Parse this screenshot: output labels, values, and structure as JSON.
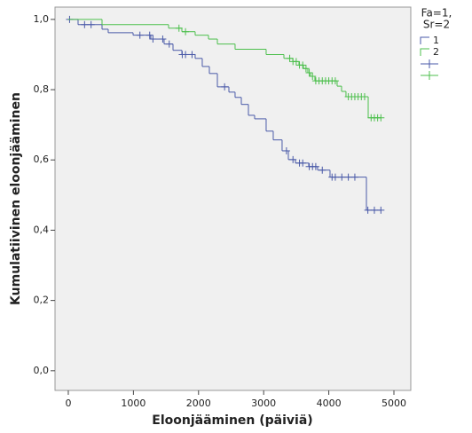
{
  "chart_data": {
    "type": "kaplan-meier",
    "xlabel": "Eloonjääminen (päiviä)",
    "ylabel": "Kumulatiivinen eloonjääminen",
    "legend_title": [
      "Fa=1,",
      "Sr=2"
    ],
    "legend_position": "right",
    "xlim": [
      -204,
      5259
    ],
    "ylim": [
      -0.056,
      1.035
    ],
    "xticks": [
      0,
      1000,
      2000,
      3000,
      4000,
      5000
    ],
    "yticks": [
      {
        "value": 0,
        "label": "0,0"
      },
      {
        "value": 0.2,
        "label": "0,2"
      },
      {
        "value": 0.4,
        "label": "0,4"
      },
      {
        "value": 0.6,
        "label": "0,6"
      },
      {
        "value": 0.8,
        "label": "0,8"
      },
      {
        "value": 1.0,
        "label": "1,0"
      }
    ],
    "series": [
      {
        "name": "1",
        "color": "#4a5aa8",
        "time": [
          0,
          150,
          518,
          613,
          995,
          1267,
          1471,
          1608,
          1744,
          1948,
          2057,
          2166,
          2289,
          2466,
          2561,
          2657,
          2766,
          2861,
          3038,
          3147,
          3283,
          3379,
          3488,
          3692,
          3828,
          4019,
          4578
        ],
        "survival": [
          1.0,
          0.985,
          0.972,
          0.962,
          0.955,
          0.944,
          0.93,
          0.912,
          0.9,
          0.889,
          0.866,
          0.846,
          0.808,
          0.793,
          0.778,
          0.758,
          0.727,
          0.717,
          0.682,
          0.657,
          0.626,
          0.601,
          0.591,
          0.581,
          0.571,
          0.551,
          0.457
        ],
        "censored_time": [
          20,
          250,
          350,
          1100,
          1250,
          1300,
          1450,
          1550,
          1750,
          1800,
          1900,
          2400,
          3350,
          3450,
          3550,
          3600,
          3700,
          3750,
          3800,
          3900,
          4050,
          4100,
          4200,
          4300,
          4400,
          4600,
          4700,
          4800
        ],
        "censored_survival": [
          1.0,
          0.985,
          0.985,
          0.955,
          0.955,
          0.944,
          0.944,
          0.93,
          0.9,
          0.9,
          0.9,
          0.808,
          0.626,
          0.601,
          0.591,
          0.591,
          0.581,
          0.581,
          0.581,
          0.571,
          0.551,
          0.551,
          0.551,
          0.551,
          0.551,
          0.457,
          0.457,
          0.457
        ]
      },
      {
        "name": "2",
        "color": "#4cbf4c",
        "time": [
          0,
          518,
          1540,
          1744,
          1948,
          2153,
          2289,
          2561,
          3038,
          3311,
          3447,
          3542,
          3610,
          3678,
          3719,
          3787,
          4128,
          4196,
          4264,
          4605
        ],
        "survival": [
          1.0,
          0.985,
          0.975,
          0.965,
          0.955,
          0.944,
          0.93,
          0.915,
          0.9,
          0.889,
          0.88,
          0.87,
          0.86,
          0.848,
          0.838,
          0.825,
          0.81,
          0.795,
          0.78,
          0.72
        ],
        "censored_time": [
          1700,
          1800,
          3400,
          3450,
          3500,
          3550,
          3600,
          3650,
          3700,
          3750,
          3800,
          3850,
          3900,
          3950,
          4000,
          4050,
          4100,
          4300,
          4350,
          4400,
          4450,
          4500,
          4550,
          4650,
          4700,
          4750,
          4800
        ],
        "censored_survival": [
          0.975,
          0.965,
          0.889,
          0.88,
          0.88,
          0.87,
          0.87,
          0.86,
          0.848,
          0.838,
          0.825,
          0.825,
          0.825,
          0.825,
          0.825,
          0.825,
          0.825,
          0.78,
          0.78,
          0.78,
          0.78,
          0.78,
          0.78,
          0.72,
          0.72,
          0.72,
          0.72
        ]
      }
    ]
  }
}
